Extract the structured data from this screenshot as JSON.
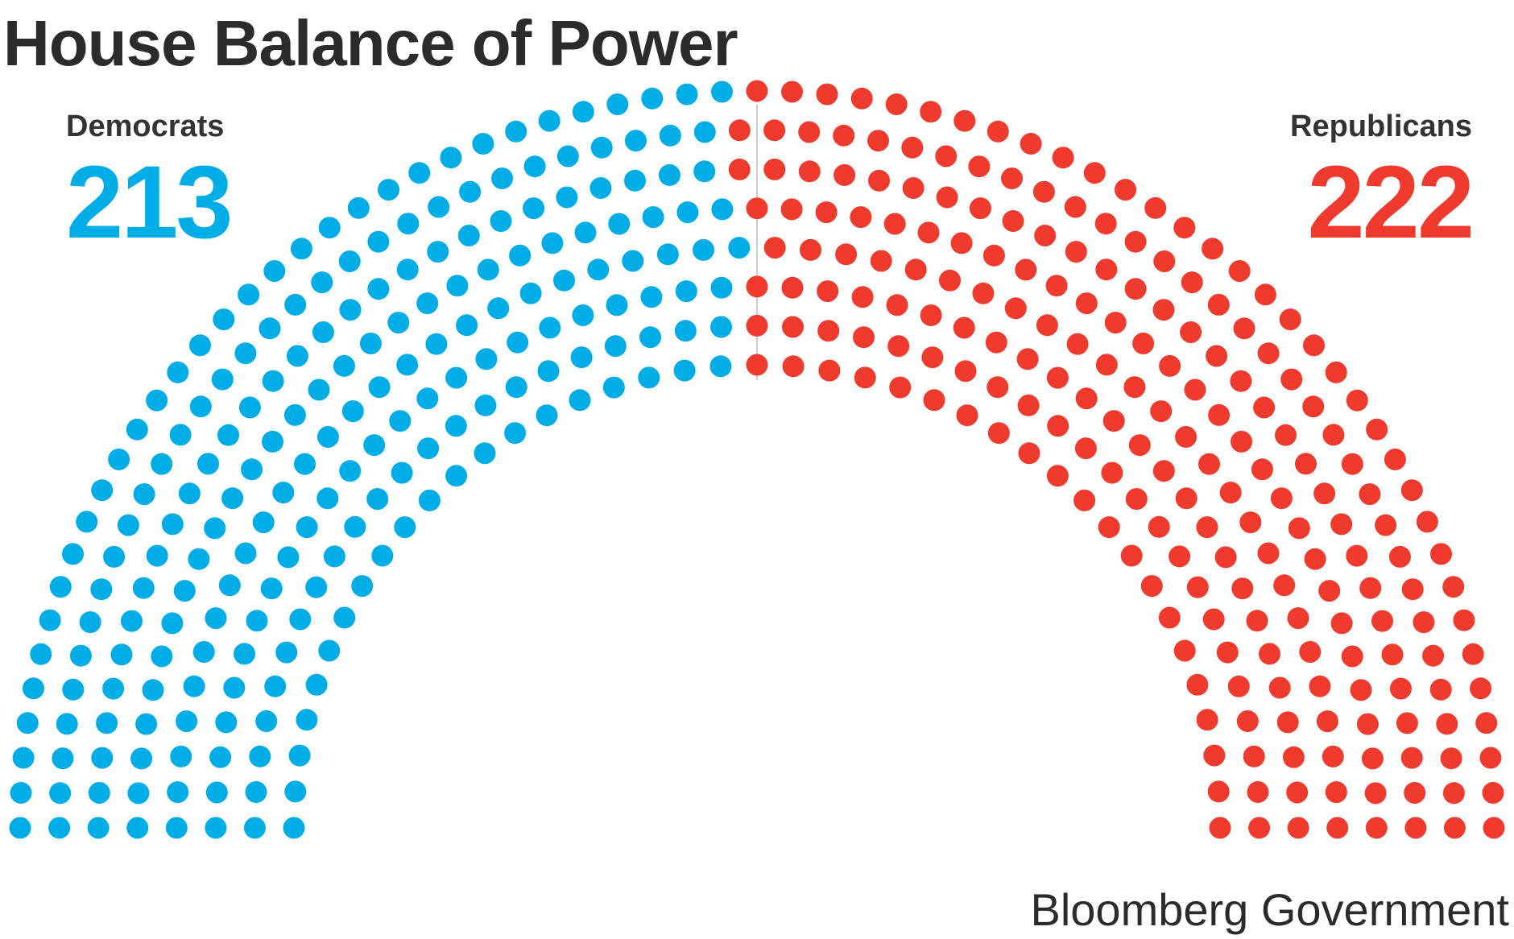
{
  "title": "House Balance of Power",
  "credit": "Bloomberg Government",
  "colors": {
    "dem": "#00ade6",
    "rep": "#ef3a2d",
    "divider": "#cccccc",
    "text": "#2b2b2b"
  },
  "chart_data": {
    "type": "parliament",
    "total_seats": 435,
    "rows": 8,
    "series": [
      {
        "name": "Democrats",
        "value": 213,
        "color": "#00ade6"
      },
      {
        "name": "Republicans",
        "value": 222,
        "color": "#ef3a2d"
      }
    ]
  }
}
